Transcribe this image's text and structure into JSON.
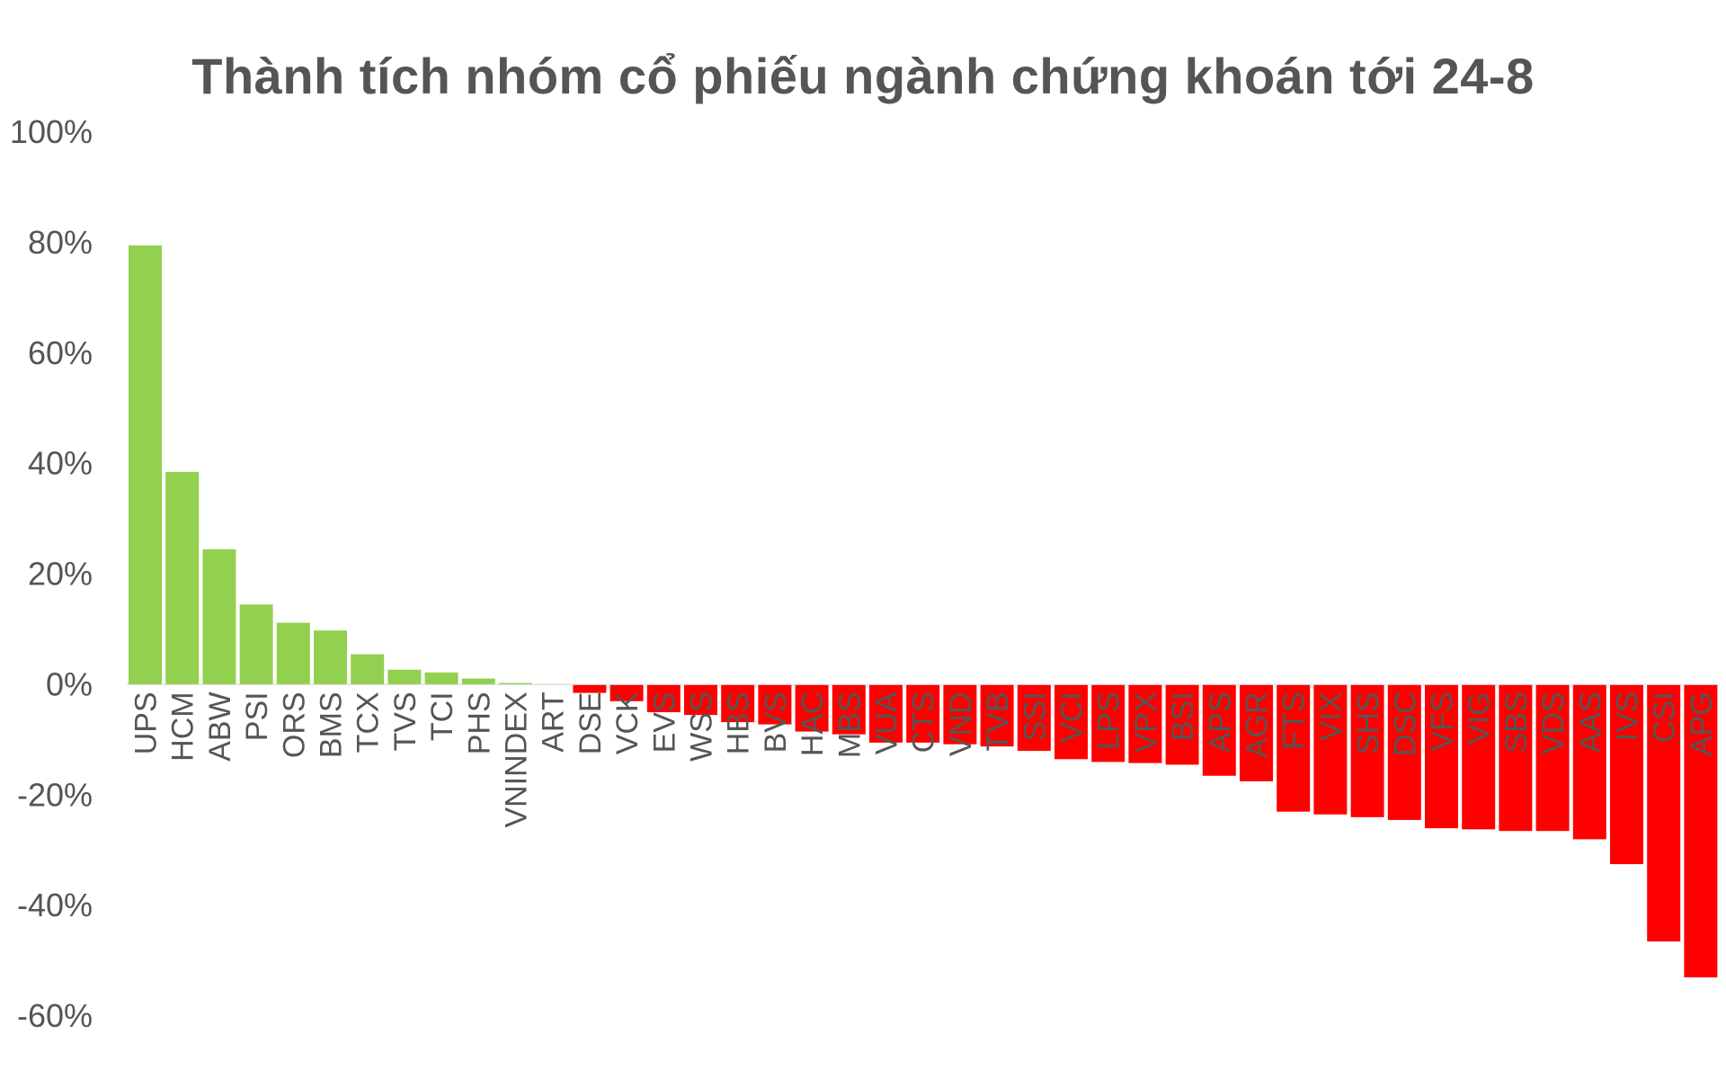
{
  "chart_data": {
    "type": "bar",
    "title": "Thành tích nhóm cổ phiếu ngành chứng khoán tới 24-8",
    "xlabel": "",
    "ylabel": "",
    "ylim": [
      -60,
      100
    ],
    "yticks": [
      100,
      80,
      60,
      40,
      20,
      0,
      -20,
      -40,
      -60
    ],
    "ytick_labels": [
      "100%",
      "80%",
      "60%",
      "40%",
      "20%",
      "0%",
      "-20%",
      "-40%",
      "-60%"
    ],
    "grid": false,
    "legend": "none",
    "colors": {
      "positive": "#92d050",
      "negative": "#ff0000",
      "text": "#555555"
    },
    "categories": [
      "UPS",
      "HCM",
      "ABW",
      "PSI",
      "ORS",
      "BMS",
      "TCX",
      "TVS",
      "TCI",
      "PHS",
      "VNINDEX",
      "ART",
      "DSE",
      "VCK",
      "EVS",
      "WSS",
      "HBS",
      "BVS",
      "HAC",
      "MBS",
      "VUA",
      "CTS",
      "VND",
      "TVB",
      "SSI",
      "VCI",
      "LPS",
      "VPX",
      "BSI",
      "APS",
      "AGR",
      "FTS",
      "VIX",
      "SHS",
      "DSC",
      "VFS",
      "VIG",
      "SBS",
      "VDS",
      "AAS",
      "IVS",
      "CSI",
      "APG"
    ],
    "values": [
      79.5,
      38.5,
      24.5,
      14.5,
      11.2,
      9.8,
      5.5,
      2.7,
      2.2,
      1.1,
      0.3,
      0.1,
      -1.5,
      -3.0,
      -5.0,
      -5.5,
      -6.8,
      -7.2,
      -8.5,
      -9.0,
      -10.5,
      -10.5,
      -10.8,
      -11.2,
      -12.0,
      -13.5,
      -14.0,
      -14.2,
      -14.5,
      -16.5,
      -17.5,
      -23.0,
      -23.5,
      -24.0,
      -24.5,
      -26.0,
      -26.2,
      -26.5,
      -26.5,
      -28.0,
      -32.5,
      -46.5,
      -53.0
    ]
  }
}
